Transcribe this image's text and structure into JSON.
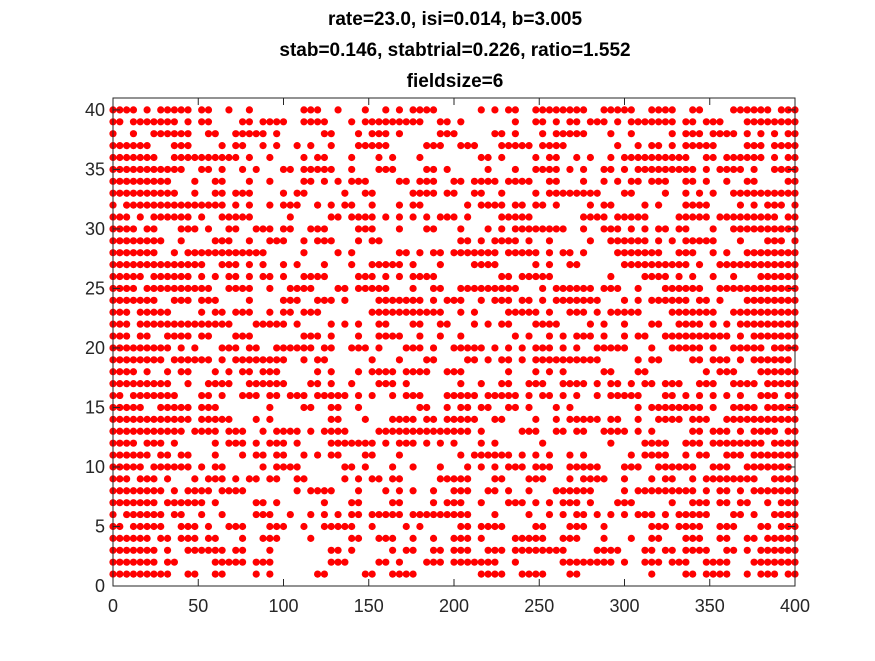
{
  "chart_data": {
    "type": "scatter",
    "title": [
      "rate=23.0, isi=0.014, b=3.005",
      "stab=0.146, stabtrial=0.226, ratio=1.552",
      "fieldsize=6"
    ],
    "xlabel": "",
    "ylabel": "",
    "xlim": [
      0,
      400
    ],
    "ylim": [
      0,
      41
    ],
    "xticks": [
      0,
      50,
      100,
      150,
      200,
      250,
      300,
      350,
      400
    ],
    "yticks": [
      0,
      5,
      10,
      15,
      20,
      25,
      30,
      35,
      40
    ],
    "grid": false,
    "legend": "none",
    "marker": "filled circle",
    "marker_color": "#ff0000",
    "rows": [
      1,
      2,
      3,
      4,
      5,
      6,
      7,
      8,
      9,
      10,
      11,
      12,
      13,
      14,
      15,
      16,
      17,
      18,
      19,
      20,
      21,
      22,
      23,
      24,
      25,
      26,
      27,
      28,
      29,
      30,
      31,
      32,
      33,
      34,
      35,
      36,
      37,
      38,
      39,
      40
    ],
    "spike_rate": 23.0,
    "density_by_x": [
      {
        "x": 0,
        "density": 0.92
      },
      {
        "x": 15,
        "density": 0.8
      },
      {
        "x": 40,
        "density": 0.55
      },
      {
        "x": 100,
        "density": 0.42
      },
      {
        "x": 200,
        "density": 0.4
      },
      {
        "x": 300,
        "density": 0.44
      },
      {
        "x": 360,
        "density": 0.55
      },
      {
        "x": 385,
        "density": 0.75
      },
      {
        "x": 400,
        "density": 0.92
      }
    ]
  }
}
